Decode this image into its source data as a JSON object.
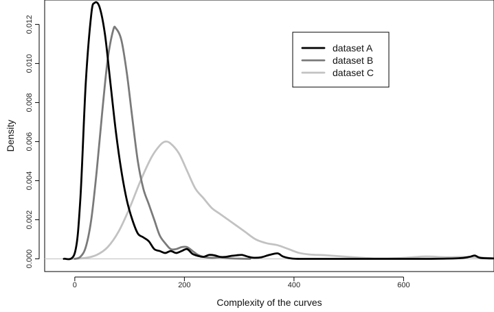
{
  "chart_data": {
    "type": "line",
    "title": "",
    "xlabel": "Complexity of the curves",
    "ylabel": "Density",
    "xlim": [
      -55,
      765
    ],
    "ylim": [
      -0.00065,
      0.01325
    ],
    "x_ticks": [
      0,
      200,
      400,
      600
    ],
    "y_ticks": [
      0.0,
      0.002,
      0.004,
      0.006,
      0.008,
      0.01,
      0.012
    ],
    "y_tick_labels": [
      "0.000",
      "0.002",
      "0.004",
      "0.006",
      "0.008",
      "0.010",
      "0.012"
    ],
    "grid": false,
    "baseline": 0,
    "legend_position": "top-right",
    "series": [
      {
        "name": "dataset A",
        "color": "#000000",
        "x": [
          -20,
          0,
          10,
          20,
          30,
          36,
          45,
          55,
          65,
          75,
          85,
          95,
          105,
          115,
          125,
          135,
          145,
          155,
          165,
          175,
          185,
          195,
          205,
          215,
          225,
          235,
          245,
          255,
          265,
          275,
          285,
          295,
          305,
          315,
          325,
          340,
          355,
          370,
          380,
          395,
          410,
          450,
          500,
          550,
          600,
          650,
          700,
          720,
          730,
          740,
          765
        ],
        "y": [
          0.0,
          0.0003,
          0.003,
          0.009,
          0.0125,
          0.0131,
          0.0129,
          0.0115,
          0.009,
          0.0065,
          0.0045,
          0.003,
          0.002,
          0.0013,
          0.0011,
          0.0009,
          0.0005,
          0.0004,
          0.0003,
          0.0004,
          0.0003,
          0.0004,
          0.0005,
          0.00025,
          0.00015,
          0.0001,
          0.0002,
          0.00018,
          0.0001,
          0.0001,
          0.00015,
          0.00018,
          0.0002,
          0.00012,
          6e-05,
          8e-05,
          0.0002,
          0.00028,
          0.00012,
          2e-05,
          0.0,
          0.0,
          0.0,
          0.0,
          0.0,
          0.0,
          3e-05,
          0.0001,
          0.00017,
          5e-05,
          2e-05
        ]
      },
      {
        "name": "dataset B",
        "color": "#7a7a7a",
        "x": [
          0,
          10,
          20,
          30,
          40,
          50,
          60,
          70,
          75,
          85,
          95,
          105,
          115,
          125,
          135,
          145,
          155,
          165,
          175,
          185,
          195,
          205,
          215,
          225,
          235,
          250,
          265,
          280,
          300,
          320
        ],
        "y": [
          0.0,
          0.0001,
          0.0006,
          0.002,
          0.0045,
          0.0075,
          0.0102,
          0.0117,
          0.0118,
          0.0112,
          0.0095,
          0.0072,
          0.005,
          0.0036,
          0.0028,
          0.002,
          0.0012,
          0.0008,
          0.0005,
          0.0005,
          0.0006,
          0.0006,
          0.0004,
          0.0002,
          0.0001,
          5e-05,
          8e-05,
          3e-05,
          1e-05,
          0.0
        ]
      },
      {
        "name": "dataset C",
        "color": "#c2c2c2",
        "x": [
          -5,
          20,
          40,
          60,
          80,
          100,
          120,
          140,
          155,
          165,
          175,
          190,
          205,
          220,
          235,
          250,
          265,
          280,
          295,
          310,
          330,
          350,
          370,
          390,
          410,
          430,
          460,
          500,
          550,
          600,
          640,
          680,
          720,
          765
        ],
        "y": [
          0.0,
          5e-05,
          0.0002,
          0.0006,
          0.0014,
          0.0026,
          0.004,
          0.0052,
          0.0058,
          0.006,
          0.0059,
          0.0054,
          0.0045,
          0.0036,
          0.0031,
          0.0026,
          0.0023,
          0.002,
          0.0017,
          0.0014,
          0.001,
          0.0008,
          0.0007,
          0.0005,
          0.0003,
          0.00022,
          0.00018,
          0.0001,
          2e-05,
          5e-05,
          0.00012,
          8e-05,
          0.0001,
          2e-05
        ]
      }
    ]
  }
}
